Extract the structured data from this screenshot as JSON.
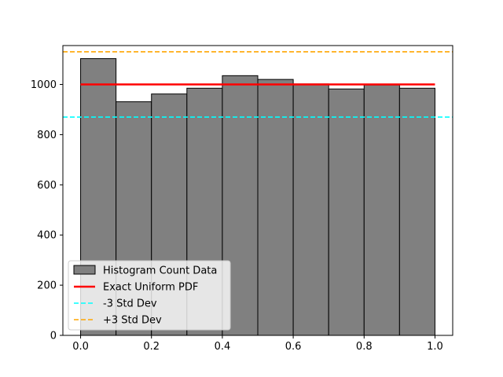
{
  "chart_data": {
    "type": "bar",
    "title": "",
    "xlabel": "",
    "ylabel": "",
    "bins": [
      {
        "start": 0.0,
        "end": 0.1,
        "count": 1103
      },
      {
        "start": 0.1,
        "end": 0.2,
        "count": 931
      },
      {
        "start": 0.2,
        "end": 0.3,
        "count": 962
      },
      {
        "start": 0.3,
        "end": 0.4,
        "count": 985
      },
      {
        "start": 0.4,
        "end": 0.5,
        "count": 1035
      },
      {
        "start": 0.5,
        "end": 0.6,
        "count": 1020
      },
      {
        "start": 0.6,
        "end": 0.7,
        "count": 1002
      },
      {
        "start": 0.7,
        "end": 0.8,
        "count": 982
      },
      {
        "start": 0.8,
        "end": 0.9,
        "count": 998
      },
      {
        "start": 0.9,
        "end": 1.0,
        "count": 985
      }
    ],
    "lines": [
      {
        "name": "Exact Uniform PDF",
        "y": 1000,
        "x_range": [
          0.0,
          1.0
        ],
        "color": "#ff0000",
        "style": "solid"
      },
      {
        "name": "-3 Std Dev",
        "y": 870,
        "x_range": "full",
        "color": "#00ffff",
        "style": "dashed"
      },
      {
        "name": "+3 Std Dev",
        "y": 1130,
        "x_range": "full",
        "color": "#ffa500",
        "style": "dashed"
      }
    ],
    "bar_color": "#808080",
    "bar_edge_color": "#000000",
    "xlim": [
      -0.05,
      1.05
    ],
    "ylim": [
      0,
      1155
    ],
    "x_ticks": [
      "0.0",
      "0.2",
      "0.4",
      "0.6",
      "0.8",
      "1.0"
    ],
    "y_ticks": [
      "0",
      "200",
      "400",
      "600",
      "800",
      "1000"
    ],
    "legend": {
      "placement": "lower-left",
      "entries": [
        {
          "label": "Histogram Count Data",
          "kind": "patch",
          "color": "#808080"
        },
        {
          "label": "Exact Uniform PDF",
          "kind": "line",
          "color": "#ff0000",
          "style": "solid"
        },
        {
          "label": "-3 Std Dev",
          "kind": "line",
          "color": "#00ffff",
          "style": "dashed"
        },
        {
          "label": "+3 Std Dev",
          "kind": "line",
          "color": "#ffa500",
          "style": "dashed"
        }
      ]
    },
    "grid": false
  }
}
